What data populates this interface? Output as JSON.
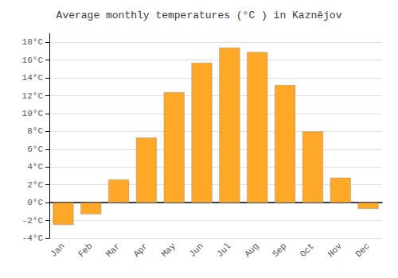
{
  "chart_data": {
    "type": "bar",
    "title": "Average monthly temperatures (°C ) in Kaznějov",
    "categories": [
      "Jan",
      "Feb",
      "Mar",
      "Apr",
      "May",
      "Jun",
      "Jul",
      "Aug",
      "Sep",
      "Oct",
      "Nov",
      "Dec"
    ],
    "values": [
      -2.5,
      -1.3,
      2.6,
      7.3,
      12.4,
      15.7,
      17.4,
      16.9,
      13.2,
      8.0,
      2.8,
      -0.7
    ],
    "color": "#FFA726",
    "ylim": [
      -4,
      19
    ],
    "yticks": [
      {
        "value": -4,
        "label": "-4°C"
      },
      {
        "value": -2,
        "label": "-2°C"
      },
      {
        "value": 0,
        "label": "0°C"
      },
      {
        "value": 2,
        "label": "2°C"
      },
      {
        "value": 4,
        "label": "4°C"
      },
      {
        "value": 6,
        "label": "6°C"
      },
      {
        "value": 8,
        "label": "8°C"
      },
      {
        "value": 10,
        "label": "10°C"
      },
      {
        "value": 12,
        "label": "12°C"
      },
      {
        "value": 14,
        "label": "14°C"
      },
      {
        "value": 16,
        "label": "16°C"
      },
      {
        "value": 18,
        "label": "18°C"
      }
    ],
    "grid": true
  }
}
